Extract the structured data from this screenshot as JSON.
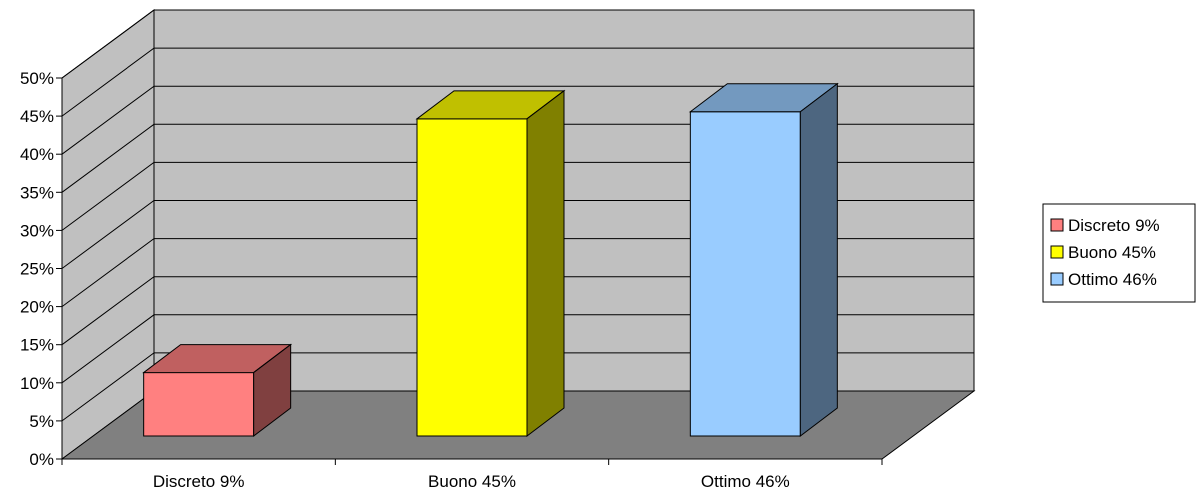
{
  "chart_data": {
    "type": "bar",
    "categories": [
      "Discreto 9%",
      "Buono 45%",
      "Ottimo 46%"
    ],
    "values": [
      9,
      45,
      46
    ],
    "y_ticks": [
      "0%",
      "5%",
      "10%",
      "15%",
      "20%",
      "25%",
      "30%",
      "35%",
      "40%",
      "45%",
      "50%"
    ],
    "ylim": [
      0,
      50
    ],
    "unit": "%",
    "grid": true,
    "three_d": true,
    "legend_position": "right",
    "legend": [
      "Discreto 9%",
      "Buono 45%",
      "Ottimo 46%"
    ],
    "colors": {
      "front": [
        "#ff8080",
        "#ffff00",
        "#99ccff"
      ],
      "top": [
        "#c06060",
        "#c0c000",
        "#7399bf"
      ],
      "side": [
        "#804040",
        "#808000",
        "#4d6680"
      ],
      "back_wall": "#c0c0c0",
      "floor": "#808080"
    }
  }
}
